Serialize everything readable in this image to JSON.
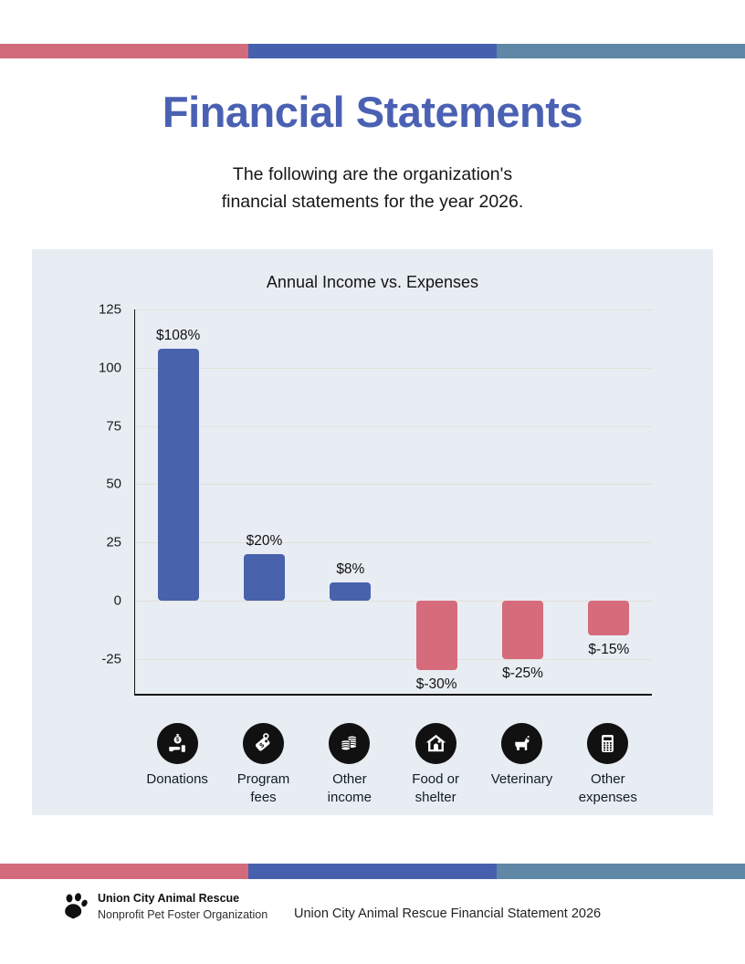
{
  "page": {
    "title": "Financial Statements",
    "subtitle_line1": "The following are the organization's",
    "subtitle_line2": "financial statements for the year 2026."
  },
  "colors": {
    "title": "#4a61b3",
    "panel_bg": "#e8edf4",
    "stripe_pink": "#d26b7c",
    "stripe_blue": "#4760ae",
    "stripe_teal": "#5e88a6",
    "gridline": "#e3e0d8",
    "axis": "#141414",
    "icon_circle": "#111111"
  },
  "chart_data": {
    "type": "bar",
    "title": "Annual Income vs. Expenses",
    "categories": [
      "Donations",
      "Program fees",
      "Other income",
      "Food or shelter",
      "Veterinary",
      "Other expenses"
    ],
    "values": [
      108,
      20,
      8,
      -30,
      -25,
      -15
    ],
    "data_labels": [
      "$108%",
      "$20%",
      "$8%",
      "$-30%",
      "$-25%",
      "$-15%"
    ],
    "icons": [
      "donation-hand-icon",
      "price-tag-icon",
      "coin-stack-icon",
      "house-icon",
      "dog-icon",
      "calculator-icon"
    ],
    "yticks": [
      125,
      100,
      75,
      50,
      25,
      0,
      -25
    ],
    "ylim": [
      -40,
      125
    ],
    "income_color": "#4862ac",
    "expense_color": "#d56b7b",
    "grid": true,
    "legend": "none",
    "xlabel": "",
    "ylabel": ""
  },
  "footer": {
    "org_name": "Union City Animal Rescue",
    "org_subtitle": "Nonprofit Pet Foster Organization",
    "document_title": "Union City Animal Rescue Financial Statement 2026"
  }
}
